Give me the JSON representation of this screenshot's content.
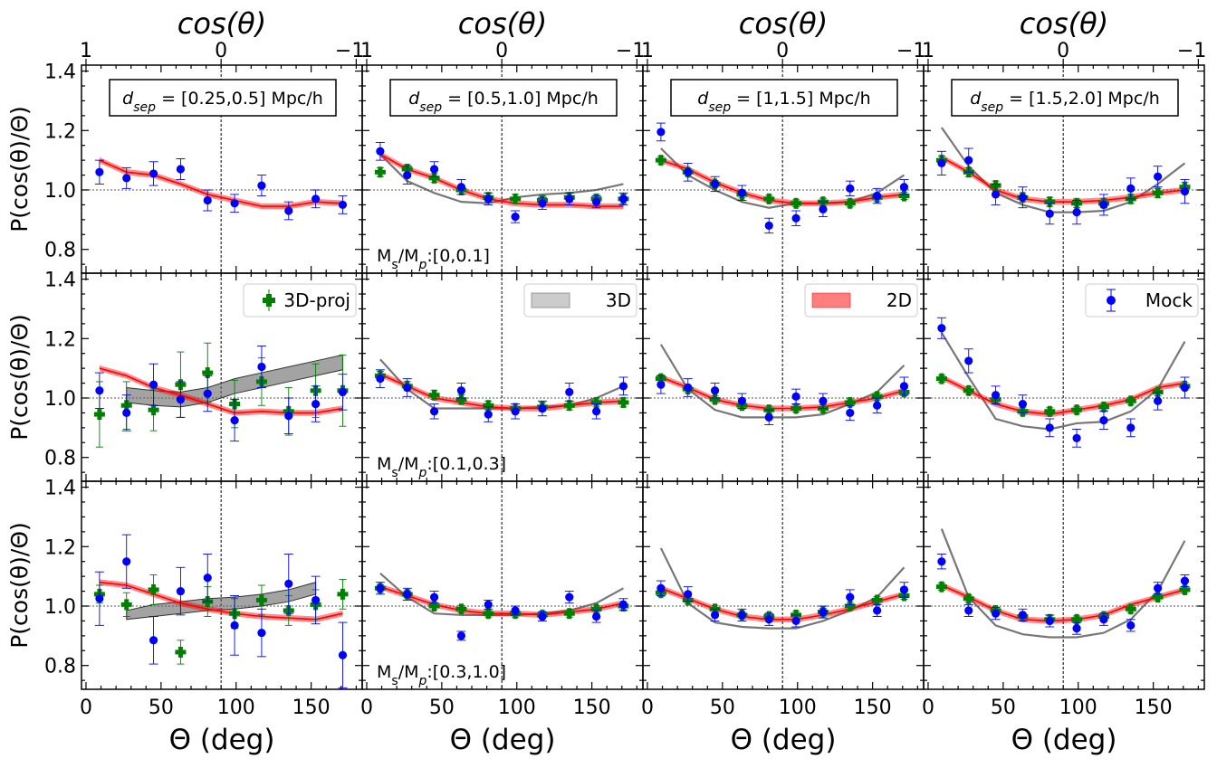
{
  "figure": {
    "top_axis_label": "cos(θ)",
    "top_tick_labels": [
      "1",
      "0",
      "−1"
    ],
    "bottom_axis_label": "Θ (deg)",
    "y_axis_label": "P(cos(θ)/Θ)",
    "colors": {
      "model2d": "#ff0000",
      "model3d": "#555555",
      "proj": "#008000",
      "mock": "#0000ff"
    }
  },
  "chart_data": {
    "type": "line",
    "layout": "3 rows x 4 columns small multiples",
    "xlim": [
      -3,
      184
    ],
    "ylim": [
      0.72,
      1.42
    ],
    "x_ticks": [
      0,
      50,
      100,
      150
    ],
    "y_ticks": [
      0.8,
      1.0,
      1.2,
      1.4
    ],
    "columns": [
      {
        "label": "d",
        "sub": "sep",
        "range": " = [0.25,0.5] Mpc/h"
      },
      {
        "label": "d",
        "sub": "sep",
        "range": " = [0.5,1.0] Mpc/h"
      },
      {
        "label": "d",
        "sub": "sep",
        "range": " = [1,1.5] Mpc/h"
      },
      {
        "label": "d",
        "sub": "sep",
        "range": " = [1.5,2.0] Mpc/h"
      }
    ],
    "rows": [
      {
        "label": "M",
        "sub1": "s",
        "mid": "/M",
        "sub2": "p",
        "range": ":[0,0.1]"
      },
      {
        "label": "M",
        "sub1": "s",
        "mid": "/M",
        "sub2": "p",
        "range": ":[0.1,0.3]"
      },
      {
        "label": "M",
        "sub1": "s",
        "mid": "/M",
        "sub2": "p",
        "range": ":[0.3,1.0]"
      }
    ],
    "legend": [
      {
        "name": "3D-proj",
        "kind": "cross"
      },
      {
        "name": "3D",
        "kind": "grey-band"
      },
      {
        "name": "2D",
        "kind": "red-band"
      },
      {
        "name": "Mock",
        "kind": "dot"
      }
    ],
    "x_points": [
      9,
      27,
      45,
      63,
      81,
      99,
      117,
      135,
      153,
      171
    ],
    "panels": [
      [
        {
          "mock": [
            1.06,
            1.04,
            1.055,
            1.07,
            0.965,
            0.955,
            1.015,
            0.93,
            0.97,
            0.95
          ],
          "mock_err": [
            0.04,
            0.035,
            0.04,
            0.035,
            0.035,
            0.03,
            0.035,
            0.03,
            0.03,
            0.03
          ],
          "model2d": [
            1.1,
            1.06,
            1.05,
            1.02,
            0.985,
            0.965,
            0.945,
            0.945,
            0.96,
            0.955
          ]
        },
        {
          "mock": [
            1.13,
            1.05,
            1.07,
            1.01,
            0.97,
            0.91,
            0.955,
            0.97,
            0.96,
            0.97
          ],
          "mock_err": [
            0.03,
            0.03,
            0.025,
            0.025,
            0.02,
            0.02,
            0.02,
            0.02,
            0.02,
            0.02
          ],
          "model2d": [
            1.12,
            1.07,
            1.04,
            1.0,
            0.97,
            0.955,
            0.95,
            0.95,
            0.945,
            0.945
          ],
          "model3d": [
            1.12,
            1.03,
            0.99,
            0.96,
            0.955,
            0.975,
            0.985,
            0.99,
            1.0,
            1.02
          ],
          "proj": [
            1.06,
            1.07,
            1.04,
            1.0,
            0.975,
            0.97,
            0.965,
            0.975,
            0.97,
            0.97
          ],
          "proj_err": [
            0.015,
            0.015,
            0.015,
            0.015,
            0.015,
            0.015,
            0.015,
            0.015,
            0.015,
            0.015
          ]
        },
        {
          "mock": [
            1.195,
            1.06,
            1.02,
            0.99,
            0.88,
            0.905,
            0.935,
            1.005,
            0.98,
            1.01
          ],
          "mock_err": [
            0.03,
            0.03,
            0.025,
            0.025,
            0.025,
            0.025,
            0.025,
            0.025,
            0.025,
            0.025
          ],
          "model2d": [
            1.1,
            1.07,
            1.025,
            0.99,
            0.965,
            0.955,
            0.955,
            0.96,
            0.975,
            0.985
          ],
          "model3d": [
            1.14,
            1.05,
            1.0,
            0.96,
            0.94,
            0.955,
            0.955,
            0.96,
            0.99,
            1.05
          ],
          "proj": [
            1.1,
            1.06,
            1.02,
            0.985,
            0.97,
            0.955,
            0.96,
            0.955,
            0.975,
            0.98
          ],
          "proj_err": [
            0.012,
            0.012,
            0.012,
            0.012,
            0.012,
            0.012,
            0.012,
            0.012,
            0.012,
            0.012
          ]
        },
        {
          "mock": [
            1.09,
            1.1,
            0.985,
            0.975,
            0.92,
            0.925,
            0.95,
            1.005,
            1.045,
            0.995
          ],
          "mock_err": [
            0.04,
            0.04,
            0.035,
            0.035,
            0.035,
            0.04,
            0.035,
            0.035,
            0.035,
            0.04
          ],
          "model2d": [
            1.11,
            1.06,
            1.0,
            0.97,
            0.96,
            0.96,
            0.965,
            0.975,
            0.99,
            1.0
          ],
          "model3d": [
            1.21,
            1.08,
            0.99,
            0.95,
            0.925,
            0.925,
            0.93,
            0.96,
            1.02,
            1.09
          ],
          "proj": [
            1.1,
            1.06,
            1.015,
            0.975,
            0.96,
            0.955,
            0.955,
            0.97,
            0.99,
            1.01
          ],
          "proj_err": [
            0.015,
            0.015,
            0.015,
            0.015,
            0.015,
            0.015,
            0.015,
            0.015,
            0.015,
            0.015
          ]
        }
      ],
      [
        {
          "mock": [
            1.025,
            0.95,
            1.045,
            0.995,
            1.015,
            0.925,
            1.105,
            0.94,
            0.98,
            1.02
          ],
          "mock_err": [
            0.06,
            0.06,
            0.07,
            0.06,
            0.06,
            0.07,
            0.07,
            0.06,
            0.06,
            0.06
          ],
          "model2d": [
            1.1,
            1.075,
            1.035,
            1.01,
            0.98,
            0.95,
            0.955,
            0.95,
            0.95,
            0.965
          ],
          "model3d": [
            null,
            1.01,
            1.0,
            0.995,
            1.01,
            1.04,
            1.06,
            1.08,
            1.1,
            1.12
          ],
          "model3d_w": [
            null,
            0.05,
            0.05,
            0.05,
            0.05,
            0.05,
            0.05,
            0.05,
            0.05,
            0.05
          ],
          "proj": [
            0.945,
            0.975,
            0.96,
            1.045,
            1.085,
            0.98,
            1.055,
            0.955,
            1.025,
            1.025
          ],
          "proj_err": [
            0.11,
            0.08,
            0.07,
            0.11,
            0.1,
            0.08,
            0.08,
            0.08,
            0.09,
            0.12
          ]
        },
        {
          "mock": [
            1.065,
            1.035,
            0.955,
            1.025,
            0.945,
            0.955,
            0.965,
            1.02,
            0.955,
            1.04
          ],
          "mock_err": [
            0.03,
            0.03,
            0.025,
            0.025,
            0.025,
            0.025,
            0.025,
            0.03,
            0.025,
            0.03
          ],
          "model2d": [
            1.08,
            1.04,
            1.0,
            0.985,
            0.97,
            0.965,
            0.965,
            0.975,
            0.985,
            0.99
          ],
          "model3d": [
            1.13,
            1.03,
            0.965,
            0.965,
            0.965,
            0.965,
            0.97,
            0.975,
            1.0,
            1.04
          ],
          "proj": [
            1.075,
            1.04,
            1.01,
            0.995,
            0.975,
            0.965,
            0.97,
            0.975,
            0.985,
            0.985
          ],
          "proj_err": [
            0.015,
            0.015,
            0.015,
            0.015,
            0.015,
            0.015,
            0.015,
            0.015,
            0.015,
            0.015
          ]
        },
        {
          "mock": [
            1.045,
            1.035,
            1.025,
            0.99,
            0.935,
            1.005,
            0.99,
            0.95,
            0.975,
            1.04
          ],
          "mock_err": [
            0.03,
            0.03,
            0.025,
            0.025,
            0.025,
            0.025,
            0.025,
            0.025,
            0.025,
            0.03
          ],
          "model2d": [
            1.07,
            1.035,
            0.995,
            0.975,
            0.965,
            0.965,
            0.97,
            0.985,
            1.0,
            1.025
          ],
          "model3d": [
            1.18,
            1.03,
            0.96,
            0.935,
            0.935,
            0.935,
            0.945,
            0.98,
            1.02,
            1.11
          ],
          "proj": [
            1.065,
            1.03,
            0.995,
            0.975,
            0.96,
            0.965,
            0.965,
            0.985,
            1.005,
            1.02
          ],
          "proj_err": [
            0.012,
            0.012,
            0.012,
            0.012,
            0.012,
            0.012,
            0.012,
            0.012,
            0.012,
            0.012
          ]
        },
        {
          "mock": [
            1.235,
            1.125,
            1.01,
            0.98,
            0.9,
            0.865,
            0.925,
            0.9,
            0.99,
            1.035
          ],
          "mock_err": [
            0.035,
            0.04,
            0.03,
            0.03,
            0.03,
            0.03,
            0.03,
            0.03,
            0.03,
            0.035
          ],
          "model2d": [
            1.07,
            1.025,
            0.98,
            0.955,
            0.945,
            0.96,
            0.975,
            0.995,
            1.035,
            1.05
          ],
          "model3d": [
            1.22,
            1.07,
            0.93,
            0.905,
            0.895,
            0.915,
            0.92,
            0.955,
            1.03,
            1.19
          ],
          "proj": [
            1.065,
            1.025,
            0.995,
            0.955,
            0.955,
            0.96,
            0.97,
            0.99,
            1.02,
            1.04
          ],
          "proj_err": [
            0.012,
            0.012,
            0.012,
            0.012,
            0.012,
            0.012,
            0.012,
            0.012,
            0.012,
            0.012
          ]
        }
      ],
      [
        {
          "mock": [
            1.025,
            1.15,
            0.885,
            1.05,
            1.095,
            0.935,
            0.91,
            1.075,
            1.02,
            0.835
          ],
          "mock_err": [
            0.09,
            0.09,
            0.08,
            0.08,
            0.08,
            0.1,
            0.08,
            0.1,
            0.08,
            0.11
          ],
          "model2d": [
            1.08,
            1.07,
            1.04,
            1.01,
            0.99,
            0.975,
            0.965,
            0.96,
            0.955,
            0.975
          ],
          "model3d": [
            null,
            0.97,
            0.985,
            0.995,
            1.005,
            1.01,
            1.02,
            1.035,
            1.06,
            null
          ],
          "model3d_w": [
            null,
            0.03,
            0.04,
            0.04,
            0.04,
            0.04,
            0.04,
            0.04,
            0.04,
            null
          ],
          "proj": [
            1.04,
            1.005,
            1.055,
            0.845,
            1.015,
            0.975,
            1.02,
            0.985,
            1.005,
            1.04
          ],
          "proj_err": [
            0.03,
            0.04,
            0.05,
            0.04,
            0.05,
            0.05,
            0.05,
            0.05,
            0.05,
            0.05
          ]
        },
        {
          "mock": [
            1.06,
            1.04,
            1.03,
            0.9,
            1.005,
            0.985,
            0.965,
            1.03,
            0.965,
            1.005
          ],
          "mock_err": [
            0.02,
            0.02,
            0.02,
            0.015,
            0.015,
            0.015,
            0.015,
            0.02,
            0.02,
            0.02
          ],
          "model2d": [
            1.065,
            1.035,
            1.005,
            0.985,
            0.975,
            0.975,
            0.97,
            0.98,
            0.99,
            1.01
          ],
          "model3d": [
            1.11,
            1.03,
            0.975,
            0.97,
            0.97,
            0.97,
            0.975,
            0.985,
            1.01,
            1.06
          ],
          "proj": [
            1.06,
            1.04,
            1.0,
            0.99,
            0.975,
            0.975,
            0.97,
            0.975,
            0.99,
            1.0
          ],
          "proj_err": [
            0.012,
            0.012,
            0.012,
            0.012,
            0.012,
            0.012,
            0.012,
            0.012,
            0.012,
            0.012
          ]
        },
        {
          "mock": [
            1.06,
            1.04,
            0.97,
            0.97,
            0.955,
            0.95,
            0.98,
            1.03,
            0.985,
            1.055
          ],
          "mock_err": [
            0.025,
            0.025,
            0.02,
            0.02,
            0.02,
            0.02,
            0.02,
            0.025,
            0.02,
            0.025
          ],
          "model2d": [
            1.06,
            1.025,
            0.99,
            0.965,
            0.955,
            0.955,
            0.97,
            0.99,
            1.015,
            1.04
          ],
          "model3d": [
            1.195,
            1.01,
            0.945,
            0.93,
            0.925,
            0.925,
            0.95,
            0.985,
            1.03,
            1.13
          ],
          "proj": [
            1.045,
            1.02,
            0.99,
            0.97,
            0.965,
            0.97,
            0.98,
            1.0,
            1.02,
            1.035
          ],
          "proj_err": [
            0.012,
            0.012,
            0.012,
            0.012,
            0.012,
            0.012,
            0.012,
            0.012,
            0.012,
            0.012
          ]
        },
        {
          "mock": [
            1.15,
            0.985,
            0.975,
            0.97,
            0.95,
            0.925,
            0.955,
            0.935,
            1.06,
            1.085
          ],
          "mock_err": [
            0.025,
            0.02,
            0.02,
            0.02,
            0.02,
            0.02,
            0.02,
            0.02,
            0.02,
            0.02
          ],
          "model2d": [
            1.07,
            1.03,
            0.985,
            0.955,
            0.95,
            0.955,
            0.97,
            1.005,
            1.03,
            1.055
          ],
          "model3d": [
            1.26,
            1.03,
            0.935,
            0.905,
            0.895,
            0.895,
            0.91,
            0.955,
            1.05,
            1.22
          ],
          "proj": [
            1.065,
            1.025,
            0.985,
            0.965,
            0.955,
            0.955,
            0.965,
            0.99,
            1.03,
            1.055
          ],
          "proj_err": [
            0.012,
            0.012,
            0.012,
            0.012,
            0.012,
            0.012,
            0.012,
            0.012,
            0.012,
            0.012
          ]
        }
      ]
    ]
  }
}
